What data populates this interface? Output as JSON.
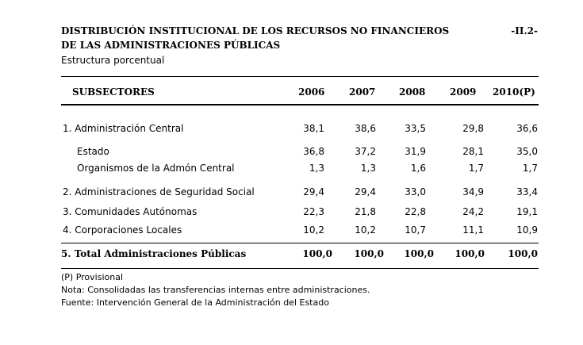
{
  "title": {
    "line1": "DISTRIBUCIÓN INSTITUCIONAL DE LOS RECURSOS NO FINANCIEROS",
    "line2": "DE LAS ADMINISTRACIONES PÚBLICAS",
    "code": "-II.2-",
    "subtitle": "Estructura porcentual"
  },
  "table": {
    "headers": [
      "SUBSECTORES",
      "2006",
      "2007",
      "2008",
      "2009",
      "2010(P)"
    ],
    "rows": [
      {
        "label": "1. Administración Central",
        "values": [
          "38,1",
          "38,6",
          "33,5",
          "29,8",
          "36,6"
        ]
      },
      {
        "label": "Estado",
        "values": [
          "36,8",
          "37,2",
          "31,9",
          "28,1",
          "35,0"
        ]
      },
      {
        "label": "Organismos de la Admón Central",
        "values": [
          "1,3",
          "1,3",
          "1,6",
          "1,7",
          "1,7"
        ]
      },
      {
        "label": "2.  Administraciones de Seguridad Social",
        "values": [
          "29,4",
          "29,4",
          "33,0",
          "34,9",
          "33,4"
        ]
      },
      {
        "label": "3.  Comunidades Autónomas",
        "values": [
          "22,3",
          "21,8",
          "22,8",
          "24,2",
          "19,1"
        ]
      },
      {
        "label": "4.  Corporaciones Locales",
        "values": [
          "10,2",
          "10,2",
          "10,7",
          "11,1",
          "10,9"
        ]
      },
      {
        "label": "5. Total Administraciones Públicas",
        "values": [
          "100,0",
          "100,0",
          "100,0",
          "100,0",
          "100,0"
        ]
      }
    ]
  },
  "notes": {
    "line1": "(P) Provisional",
    "line2": "Nota: Consolidadas las transferencias internas entre administraciones.",
    "line3": "Fuente: Intervención General de la Administración del Estado"
  }
}
